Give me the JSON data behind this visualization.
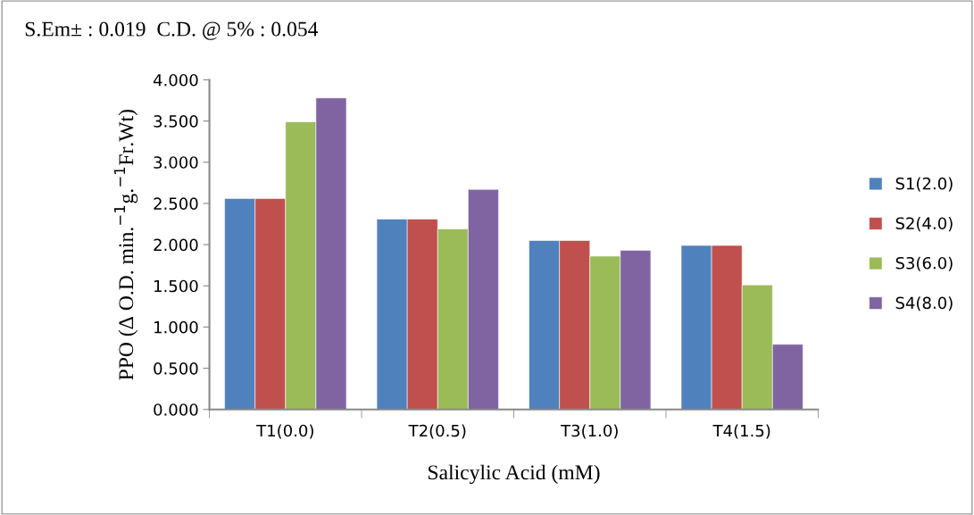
{
  "chart_data": {
    "type": "bar",
    "title": "S.Em± : 0.019  C.D. @ 5% : 0.054",
    "xlabel": "Salicylic Acid (mM)",
    "ylabel": "PPO (Δ O.D. min.$^{−1}$g.$^{−1}$Fr.Wt)",
    "categories": [
      "T1(0.0)",
      "T2(0.5)",
      "T3(1.0)",
      "T4(1.5)"
    ],
    "series": [
      {
        "name": "S1(2.0)",
        "color": "#4f81bd",
        "values": [
          2.56,
          2.31,
          2.05,
          1.99
        ]
      },
      {
        "name": "S2(4.0)",
        "color": "#c0504d",
        "values": [
          2.56,
          2.31,
          2.05,
          1.99
        ]
      },
      {
        "name": "S3(6.0)",
        "color": "#9bbb59",
        "values": [
          3.49,
          2.19,
          1.86,
          1.51
        ]
      },
      {
        "name": "S4(8.0)",
        "color": "#8064a2",
        "values": [
          3.78,
          2.67,
          1.93,
          0.79
        ]
      }
    ],
    "ylim": [
      0,
      4
    ],
    "yticks": [
      {
        "value": 0,
        "label": "0.000"
      },
      {
        "value": 0.5,
        "label": "0.500"
      },
      {
        "value": 1,
        "label": "1.000"
      },
      {
        "value": 1.5,
        "label": "1.500"
      },
      {
        "value": 2,
        "label": "2.000"
      },
      {
        "value": 2.5,
        "label": "2.500"
      },
      {
        "value": 3,
        "label": "3.000"
      },
      {
        "value": 3.5,
        "label": "3.500"
      },
      {
        "value": 4,
        "label": "4.000"
      }
    ],
    "grid": false,
    "legend": "right"
  }
}
